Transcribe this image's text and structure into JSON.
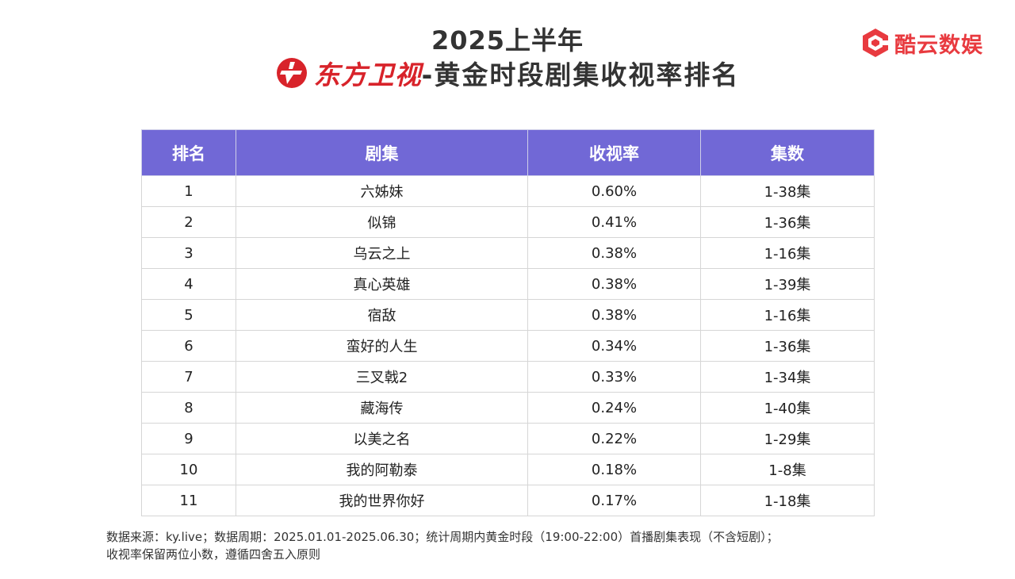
{
  "header": {
    "year_title": "2025上半年",
    "channel_name": "东方卫视",
    "title_rest": "-黄金时段剧集收视率排名"
  },
  "brand": {
    "name": "酷云数娱",
    "color": "#e83a3f"
  },
  "colors": {
    "header_bg": "#7168d6",
    "channel_red": "#d8232a"
  },
  "table": {
    "headers": [
      "排名",
      "剧集",
      "收视率",
      "集数"
    ],
    "rows": [
      {
        "rank": "1",
        "title": "六姊妹",
        "rating": "0.60%",
        "episodes": "1-38集"
      },
      {
        "rank": "2",
        "title": "似锦",
        "rating": "0.41%",
        "episodes": "1-36集"
      },
      {
        "rank": "3",
        "title": "乌云之上",
        "rating": "0.38%",
        "episodes": "1-16集"
      },
      {
        "rank": "4",
        "title": "真心英雄",
        "rating": "0.38%",
        "episodes": "1-39集"
      },
      {
        "rank": "5",
        "title": "宿敌",
        "rating": "0.38%",
        "episodes": "1-16集"
      },
      {
        "rank": "6",
        "title": "蛮好的人生",
        "rating": "0.34%",
        "episodes": "1-36集"
      },
      {
        "rank": "7",
        "title": "三叉戟2",
        "rating": "0.33%",
        "episodes": "1-34集"
      },
      {
        "rank": "8",
        "title": "藏海传",
        "rating": "0.24%",
        "episodes": "1-40集"
      },
      {
        "rank": "9",
        "title": "以美之名",
        "rating": "0.22%",
        "episodes": "1-29集"
      },
      {
        "rank": "10",
        "title": "我的阿勒泰",
        "rating": "0.18%",
        "episodes": "1-8集"
      },
      {
        "rank": "11",
        "title": "我的世界你好",
        "rating": "0.17%",
        "episodes": "1-18集"
      }
    ]
  },
  "footnote": {
    "line1": "数据来源：ky.live；数据周期：2025.01.01-2025.06.30；统计周期内黄金时段（19:00-22:00）首播剧集表现（不含短剧）；",
    "line2": "收视率保留两位小数，遵循四舍五入原则"
  }
}
